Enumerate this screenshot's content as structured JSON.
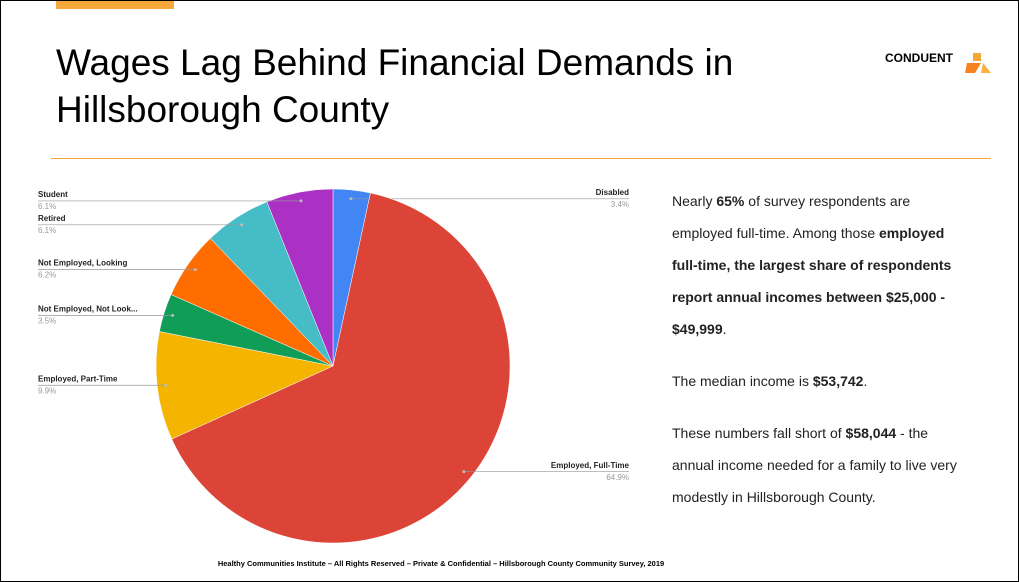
{
  "title": "Wages Lag Behind Financial Demands in Hillsborough County",
  "logo": "CONDUENT",
  "paragraphs": [
    [
      "Nearly ",
      "65%",
      " of survey respondents are employed full-time. Among those ",
      "employed full-time, the largest share of respondents report annual incomes between $25,000 - $49,999",
      "."
    ],
    [
      "The median income is ",
      "$53,742",
      "."
    ],
    [
      "These numbers fall short of ",
      "$58,044",
      " - the annual income needed for a family to live very modestly in Hillsborough County."
    ]
  ],
  "footer": "Healthy Communities Institute – All Rights Reserved – Private & Confidential – Hillsborough County Community Survey, 2019",
  "chart_data": {
    "type": "pie",
    "categories": [
      "Disabled",
      "Employed, Full-Time",
      "Employed, Part-Time",
      "Not Employed, Not Look...",
      "Not Employed, Looking",
      "Retired",
      "Student"
    ],
    "values": [
      3.4,
      64.9,
      9.9,
      3.5,
      6.2,
      6.1,
      6.1
    ],
    "value_labels": [
      "3.4%",
      "64.9%",
      "9.9%",
      "3.5%",
      "6.2%",
      "6.1%",
      "6.1%"
    ],
    "colors": [
      "#4285f4",
      "#db4437",
      "#f4b400",
      "#0f9d58",
      "#ff6d00",
      "#46bdc6",
      "#ab30c4"
    ]
  }
}
